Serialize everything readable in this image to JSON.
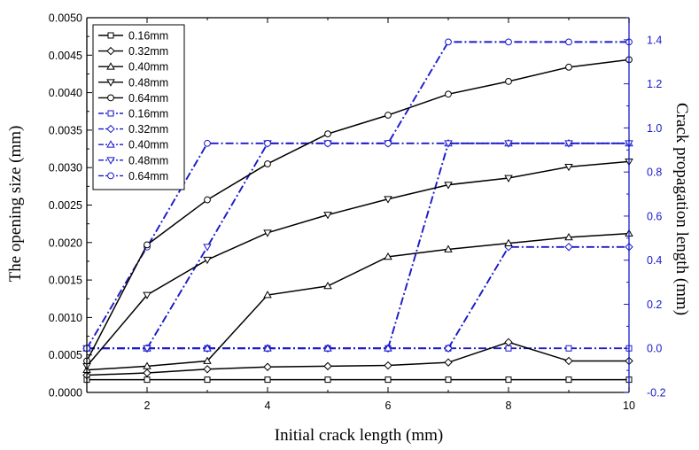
{
  "chart_data": {
    "type": "line",
    "xlabel": "Initial crack length (mm)",
    "ylabel_left": "The opening size (mm)",
    "ylabel_right": "Crack propagation length (mm)",
    "x": [
      1,
      2,
      3,
      4,
      5,
      6,
      7,
      8,
      9,
      10
    ],
    "xlim": [
      1,
      10
    ],
    "ylim_left": [
      0,
      0.005
    ],
    "ylim_right": [
      -0.2,
      1.5
    ],
    "x_ticks": [
      "2",
      "4",
      "6",
      "8",
      "10"
    ],
    "left_ticks": [
      "0.0000",
      "0.0005",
      "0.0010",
      "0.0015",
      "0.0020",
      "0.0025",
      "0.0030",
      "0.0035",
      "0.0040",
      "0.0045",
      "0.0050"
    ],
    "right_ticks": [
      "-0.2",
      "0.0",
      "0.2",
      "0.4",
      "0.6",
      "0.8",
      "1.0",
      "1.2",
      "1.4"
    ],
    "legend_position": "top-left",
    "colors": {
      "opening": "#000000",
      "crack": "#1a1acc",
      "right_axis": "#1a1acc"
    },
    "series": [
      {
        "name": "0.16mm",
        "axis": "left",
        "marker": "square",
        "values": [
          0.00017,
          0.00017,
          0.00017,
          0.00017,
          0.00017,
          0.00017,
          0.00017,
          0.00017,
          0.00017,
          0.00017
        ]
      },
      {
        "name": "0.32mm",
        "axis": "left",
        "marker": "diamond",
        "values": [
          0.00023,
          0.00026,
          0.00031,
          0.00034,
          0.00035,
          0.00036,
          0.0004,
          0.00067,
          0.00042,
          0.00042
        ]
      },
      {
        "name": "0.40mm",
        "axis": "left",
        "marker": "triangle-up",
        "values": [
          0.0003,
          0.00035,
          0.00042,
          0.0013,
          0.00142,
          0.00181,
          0.00191,
          0.00199,
          0.00207,
          0.00212
        ]
      },
      {
        "name": "0.48mm",
        "axis": "left",
        "marker": "triangle-down",
        "values": [
          0.00035,
          0.0013,
          0.00177,
          0.00213,
          0.00237,
          0.00258,
          0.00277,
          0.00286,
          0.00301,
          0.00308
        ]
      },
      {
        "name": "0.64mm",
        "axis": "left",
        "marker": "circle",
        "values": [
          0.00042,
          0.00197,
          0.00257,
          0.00305,
          0.00345,
          0.0037,
          0.00398,
          0.00415,
          0.00434,
          0.00444
        ]
      },
      {
        "name": "0.16mm",
        "axis": "right",
        "marker": "square",
        "values": [
          0,
          0,
          0,
          0,
          0,
          0,
          0,
          0,
          0,
          0
        ]
      },
      {
        "name": "0.32mm",
        "axis": "right",
        "marker": "diamond",
        "values": [
          0,
          0,
          0,
          0,
          0,
          0,
          0,
          0.46,
          0.46,
          0.46
        ]
      },
      {
        "name": "0.40mm",
        "axis": "right",
        "marker": "triangle-up",
        "values": [
          0,
          0,
          0,
          0,
          0,
          0,
          0.93,
          0.93,
          0.93,
          0.93
        ]
      },
      {
        "name": "0.48mm",
        "axis": "right",
        "marker": "triangle-down",
        "values": [
          0,
          0,
          0.46,
          0.93,
          0.93,
          0.93,
          0.93,
          0.93,
          0.93,
          0.93
        ]
      },
      {
        "name": "0.64mm",
        "axis": "right",
        "marker": "circle",
        "values": [
          0,
          0.46,
          0.93,
          0.93,
          0.93,
          0.93,
          1.39,
          1.39,
          1.39,
          1.39
        ]
      }
    ]
  }
}
